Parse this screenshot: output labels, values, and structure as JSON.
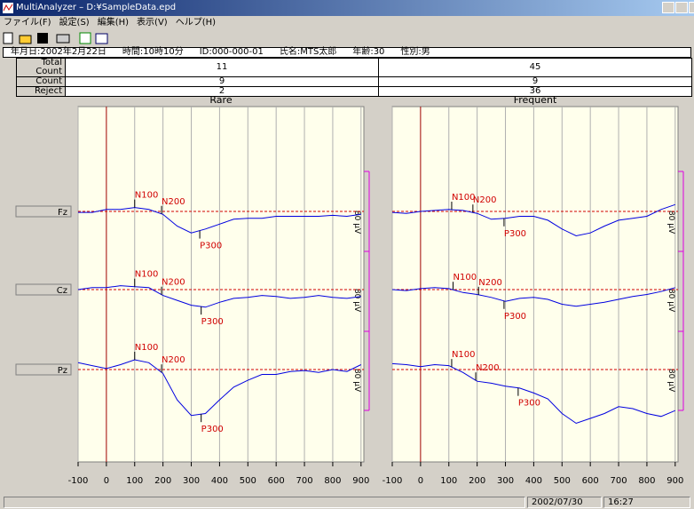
{
  "title_bar": "MultiAnalyzer – D:¥SampleData.epd",
  "menu": [
    "ファイル(F)",
    "設定(S)",
    "編集(H)",
    "表示(V)",
    "ヘルプ(H)"
  ],
  "info": [
    "年月日:2002年2月22日",
    "時間:10時10分",
    "ID:000-000-01",
    "氏名:MTS太郎",
    "年齢:30",
    "性別:男"
  ],
  "table": {
    "rows": [
      [
        "Total Count",
        "11",
        "45"
      ],
      [
        "Count",
        "9",
        "9"
      ],
      [
        "Reject",
        "2",
        "36"
      ]
    ]
  },
  "channels": [
    "Fz",
    "Cz",
    "Pz"
  ],
  "scale_label": "80 μV",
  "x_axis": {
    "xlim": [
      -100,
      910
    ],
    "xticks": [
      -100,
      0,
      100,
      200,
      300,
      400,
      500,
      600,
      700,
      800,
      900
    ]
  },
  "x": [
    -100,
    -50,
    0,
    50,
    100,
    150,
    200,
    250,
    300,
    350,
    400,
    450,
    500,
    550,
    600,
    650,
    700,
    750,
    800,
    850,
    900
  ],
  "panels": [
    {
      "title": "Rare",
      "traces": [
        {
          "values": [
            -1,
            -1,
            2,
            2,
            4,
            2,
            -3,
            -15,
            -22,
            -18,
            -13,
            -8,
            -7,
            -7,
            -5,
            -5,
            -5,
            -5,
            -4,
            -5,
            -3
          ],
          "peaks": [
            {
              "label": "N100",
              "latency": 100
            },
            {
              "label": "N200",
              "latency": 195
            },
            {
              "label": "P300",
              "latency": 330
            }
          ]
        },
        {
          "values": [
            0,
            2,
            2,
            4,
            3,
            2,
            -6,
            -11,
            -16,
            -18,
            -13,
            -9,
            -8,
            -6,
            -7,
            -9,
            -8,
            -6,
            -8,
            -9,
            -7
          ],
          "peaks": [
            {
              "label": "N100",
              "latency": 100
            },
            {
              "label": "N200",
              "latency": 195
            },
            {
              "label": "P300",
              "latency": 335
            }
          ]
        },
        {
          "values": [
            7,
            4,
            1,
            5,
            10,
            7,
            -4,
            -31,
            -47,
            -45,
            -31,
            -18,
            -11,
            -5,
            -5,
            -2,
            -1,
            -3,
            0,
            -2,
            5
          ],
          "peaks": [
            {
              "label": "N100",
              "latency": 100
            },
            {
              "label": "N200",
              "latency": 195
            },
            {
              "label": "P300",
              "latency": 335
            }
          ]
        }
      ]
    },
    {
      "title": "Frequent",
      "traces": [
        {
          "values": [
            -1,
            -2,
            0,
            1,
            2,
            1,
            -2,
            -8,
            -7,
            -5,
            -5,
            -9,
            -18,
            -25,
            -22,
            -15,
            -9,
            -7,
            -5,
            2,
            7
          ],
          "peaks": [
            {
              "label": "N100",
              "latency": 110
            },
            {
              "label": "N200",
              "latency": 185
            },
            {
              "label": "P300",
              "latency": 295
            }
          ]
        },
        {
          "values": [
            0,
            -1,
            1,
            2,
            1,
            -3,
            -5,
            -8,
            -12,
            -9,
            -8,
            -10,
            -15,
            -17,
            -15,
            -13,
            -10,
            -7,
            -5,
            -2,
            2
          ],
          "peaks": [
            {
              "label": "N100",
              "latency": 115
            },
            {
              "label": "N200",
              "latency": 205
            },
            {
              "label": "P300",
              "latency": 295
            }
          ]
        },
        {
          "values": [
            6,
            5,
            3,
            5,
            4,
            -3,
            -12,
            -14,
            -17,
            -19,
            -24,
            -30,
            -45,
            -55,
            -50,
            -45,
            -38,
            -40,
            -45,
            -48,
            -42
          ],
          "peaks": [
            {
              "label": "N100",
              "latency": 110
            },
            {
              "label": "N200",
              "latency": 195
            },
            {
              "label": "P300",
              "latency": 345
            }
          ]
        }
      ]
    }
  ],
  "status": [
    "2002/07/30",
    "16:27"
  ]
}
